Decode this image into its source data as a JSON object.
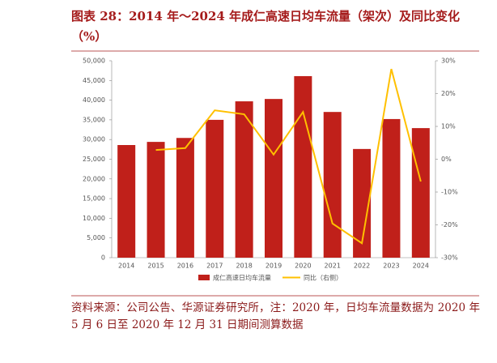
{
  "title": "图表 28：2014 年～2024 年成仁高速日均车流量（架次）及同比变化（%）",
  "chart_data": {
    "type": "bar-line",
    "categories": [
      "2014",
      "2015",
      "2016",
      "2017",
      "2018",
      "2019",
      "2020",
      "2021",
      "2022",
      "2023",
      "2024"
    ],
    "series": [
      {
        "name": "成仁高速日均车流量",
        "color": "#c0201a",
        "type": "bar",
        "values": [
          28600,
          29400,
          30400,
          35000,
          39700,
          40300,
          46100,
          37000,
          27600,
          35200,
          32900
        ]
      },
      {
        "name": "同比（右侧）",
        "color": "#ffc000",
        "type": "line",
        "axis": "y2",
        "values": [
          null,
          2.8,
          3.4,
          14.9,
          13.7,
          1.4,
          14.4,
          -19.6,
          -25.6,
          27.5,
          -6.8
        ]
      }
    ],
    "ylim": [
      0,
      50000
    ],
    "yticks": [
      0,
      {
        "value": 5000,
        "label": "5,000"
      },
      {
        "value": 10000,
        "label": "10,000"
      },
      {
        "value": 15000,
        "label": "15,000"
      },
      {
        "value": 20000,
        "label": "20,000"
      },
      {
        "value": 25000,
        "label": "25,000"
      },
      {
        "value": 30000,
        "label": "30,000"
      },
      {
        "value": 35000,
        "label": "35,000"
      },
      {
        "value": 40000,
        "label": "40,000"
      },
      {
        "value": 45000,
        "label": "45,000"
      },
      {
        "value": 50000,
        "label": "50,000"
      }
    ],
    "y2lim": [
      -30,
      30
    ],
    "y2ticks": [
      {
        "value": -30,
        "label": "-30%"
      },
      {
        "value": -20,
        "label": "-20%"
      },
      {
        "value": -10,
        "label": "-10%"
      },
      {
        "value": 0,
        "label": "0%"
      },
      {
        "value": 10,
        "label": "10%"
      },
      {
        "value": 20,
        "label": "20%"
      },
      {
        "value": 30,
        "label": "30%"
      }
    ],
    "legend": "bottom"
  },
  "note": "资料来源：公司公告、华源证券研究所，注：2020 年，日均车流量数据为 2020 年 5 月 6 日至 2020 年 12 月 31 日期间测算数据"
}
